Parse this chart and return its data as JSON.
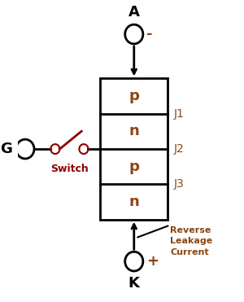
{
  "bg_color": "#ffffff",
  "box_color": "#000000",
  "text_color": "#000000",
  "label_color": "#8B4513",
  "switch_color": "#8B0000",
  "layers": [
    "p",
    "n",
    "p",
    "n"
  ],
  "junction_labels": [
    "J1",
    "J2",
    "J3"
  ],
  "anode_label": "A",
  "cathode_label": "K",
  "gate_label": "G",
  "switch_label": "Switch",
  "reverse_leakage_label": [
    "Reverse",
    "Leakage",
    "Current"
  ],
  "anode_sign": "-",
  "cathode_sign": "+"
}
